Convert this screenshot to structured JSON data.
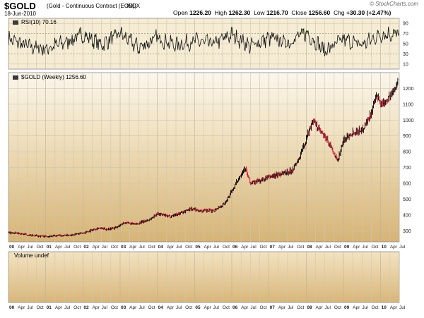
{
  "header": {
    "symbol": "$GOLD",
    "name": "(Gold - Continuous Contract (EOD))",
    "exchange": "INDX",
    "date": "18-Jun-2010",
    "brand": "© StockCharts.com",
    "quote": [
      {
        "label": "Open",
        "value": "1226.20"
      },
      {
        "label": "High",
        "value": "1262.30"
      },
      {
        "label": "Low",
        "value": "1216.70"
      },
      {
        "label": "Close",
        "value": "1256.60"
      },
      {
        "label": "Chg",
        "value": "+30.30 (+2.47%)"
      }
    ]
  },
  "colors": {
    "panel_fill_top": "#f3e7cd",
    "panel_fill_mid": "#d7b67a",
    "rsi_overbought": "#5f7f3b",
    "price_up": "#000000",
    "price_down": "#c8102e"
  },
  "chart_data": [
    {
      "type": "line",
      "title": "RSI(10) 70.16",
      "ylim": [
        0,
        100
      ],
      "ticks": [
        "90",
        "70",
        "50",
        "30",
        "10"
      ],
      "tick_values": [
        90,
        70,
        50,
        30,
        10
      ],
      "reference_lines": [
        70,
        30
      ],
      "xlim": [
        2000.0,
        2010.5
      ],
      "x": [
        2000.0,
        2000.5,
        2001.0,
        2001.5,
        2002.0,
        2002.5,
        2003.0,
        2003.5,
        2004.0,
        2004.5,
        2005.0,
        2005.5,
        2006.0,
        2006.5,
        2007.0,
        2007.5,
        2008.0,
        2008.5,
        2009.0,
        2009.5,
        2010.0,
        2010.46
      ],
      "y": [
        60,
        45,
        40,
        52,
        68,
        48,
        70,
        42,
        62,
        47,
        55,
        50,
        68,
        45,
        61,
        52,
        72,
        36,
        58,
        48,
        68,
        70
      ],
      "last_value": 70.16
    },
    {
      "type": "ohlc",
      "title": "$GOLD (Weekly) 1256.60",
      "ylim": [
        230,
        1300
      ],
      "ticks": [
        "1200",
        "1100",
        "1000",
        "900",
        "800",
        "700",
        "600",
        "500",
        "400",
        "300"
      ],
      "tick_values": [
        1200,
        1100,
        1000,
        900,
        800,
        700,
        600,
        500,
        400,
        300
      ],
      "xlim": [
        2000.0,
        2010.5
      ],
      "x": [
        2000.0,
        2000.3,
        2000.6,
        2001.0,
        2001.3,
        2001.6,
        2002.0,
        2002.4,
        2002.6,
        2002.9,
        2003.1,
        2003.4,
        2003.8,
        2004.0,
        2004.3,
        2004.6,
        2004.9,
        2005.2,
        2005.5,
        2005.8,
        2006.0,
        2006.2,
        2006.35,
        2006.5,
        2006.8,
        2007.0,
        2007.3,
        2007.6,
        2007.8,
        2008.0,
        2008.17,
        2008.4,
        2008.6,
        2008.83,
        2009.0,
        2009.2,
        2009.5,
        2009.7,
        2009.9,
        2010.0,
        2010.1,
        2010.3,
        2010.46
      ],
      "y": [
        288,
        283,
        270,
        265,
        268,
        272,
        285,
        318,
        310,
        320,
        352,
        340,
        372,
        410,
        390,
        410,
        440,
        425,
        428,
        470,
        550,
        640,
        700,
        600,
        620,
        640,
        660,
        680,
        750,
        880,
        1000,
        920,
        860,
        740,
        870,
        920,
        940,
        1020,
        1150,
        1100,
        1120,
        1160,
        1256.6
      ]
    },
    {
      "type": "bar",
      "title": "Volume undef",
      "values": []
    }
  ],
  "xaxis": {
    "years": [
      "00",
      "01",
      "02",
      "03",
      "04",
      "05",
      "06",
      "07",
      "08",
      "09",
      "10"
    ],
    "months": [
      "Apr",
      "Jul",
      "Oct"
    ]
  }
}
